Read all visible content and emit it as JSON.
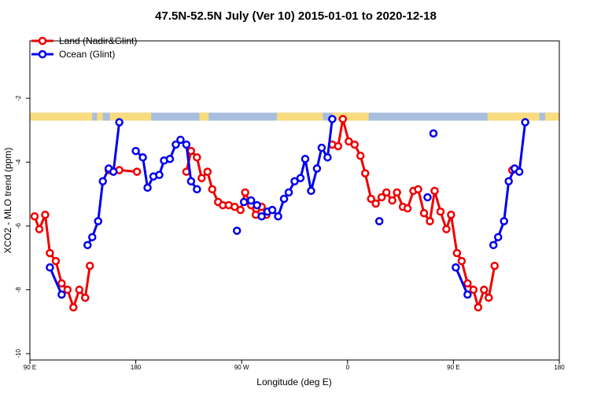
{
  "chart_data": {
    "type": "line",
    "title": "47.5N-52.5N July (Ver 10)   2015-01-01 to 2020-12-18",
    "xlabel": "Longitude (deg E)",
    "ylabel": "XCO2 - MLO trend (ppm)",
    "xlim": [
      90,
      540
    ],
    "ylim": [
      -10.2,
      -0.2
    ],
    "x_tick_values": [
      90,
      180,
      270,
      360,
      450,
      540
    ],
    "x_tick_labels": [
      "90 E",
      "180",
      "90 W",
      "0",
      "90 E",
      "180"
    ],
    "y_tick_values": [
      -10,
      -8,
      -6,
      -4,
      -2
    ],
    "y_tick_labels": [
      "-10",
      "-8",
      "-6",
      "-4",
      "-2"
    ],
    "grid": false,
    "legend_position": "top-left",
    "legend": [
      {
        "label": "Land (Nadir&Glint)",
        "color": "#ee0000"
      },
      {
        "label": "Ocean (Glint)",
        "color": "#0000ee"
      }
    ],
    "land_ocean_strip": {
      "land_color": "#f9dc7e",
      "ocean_color": "#a9bede",
      "y_range": [
        -2.7,
        -2.45
      ],
      "land_ranges": [
        [
          90,
          143
        ],
        [
          147,
          152
        ],
        [
          158,
          193
        ],
        [
          234,
          242
        ],
        [
          300,
          339
        ],
        [
          347,
          378
        ],
        [
          479,
          523
        ],
        [
          528,
          542
        ]
      ]
    },
    "series": [
      {
        "name": "Land (Nadir&Glint)",
        "color": "#ee0000",
        "segments": [
          [
            [
              94,
              -5.7
            ],
            [
              98,
              -6.1
            ],
            [
              103,
              -5.65
            ],
            [
              107,
              -6.85
            ],
            [
              112,
              -7.1
            ],
            [
              117,
              -7.8
            ],
            [
              122,
              -8.0
            ],
            [
              127,
              -8.55
            ],
            [
              132,
              -8.0
            ],
            [
              137,
              -8.25
            ],
            [
              141,
              -7.25
            ]
          ],
          [
            [
              157,
              -4.25
            ],
            [
              166,
              -4.25
            ],
            [
              181,
              -4.3
            ]
          ],
          [
            [
              223,
              -4.3
            ],
            [
              227,
              -3.65
            ],
            [
              232,
              -3.85
            ],
            [
              236,
              -4.5
            ],
            [
              241,
              -4.3
            ],
            [
              245,
              -4.85
            ],
            [
              250,
              -5.25
            ],
            [
              254,
              -5.35
            ],
            [
              259,
              -5.35
            ],
            [
              264,
              -5.4
            ],
            [
              269,
              -5.5
            ],
            [
              273,
              -4.95
            ],
            [
              278,
              -5.35
            ],
            [
              282,
              -5.65
            ],
            [
              287,
              -5.4
            ],
            [
              291,
              -5.65
            ],
            [
              296,
              -5.5
            ]
          ],
          [
            [
              347,
              -3.45
            ],
            [
              352,
              -3.5
            ],
            [
              356,
              -2.65
            ],
            [
              361,
              -3.35
            ],
            [
              366,
              -3.45
            ],
            [
              371,
              -3.8
            ],
            [
              375,
              -4.35
            ],
            [
              380,
              -5.15
            ],
            [
              384,
              -5.3
            ],
            [
              389,
              -5.1
            ],
            [
              393,
              -4.95
            ],
            [
              398,
              -5.2
            ],
            [
              402,
              -4.95
            ],
            [
              407,
              -5.4
            ],
            [
              411,
              -5.45
            ],
            [
              416,
              -4.9
            ],
            [
              420,
              -4.85
            ],
            [
              425,
              -5.6
            ],
            [
              430,
              -5.85
            ],
            [
              434,
              -4.9
            ],
            [
              439,
              -5.55
            ],
            [
              444,
              -6.1
            ],
            [
              448,
              -5.65
            ],
            [
              453,
              -6.85
            ],
            [
              457,
              -7.1
            ],
            [
              462,
              -7.8
            ],
            [
              467,
              -8.0
            ],
            [
              471,
              -8.55
            ],
            [
              476,
              -8.0
            ],
            [
              480,
              -8.25
            ],
            [
              485,
              -7.25
            ]
          ],
          [
            [
              500,
              -4.25
            ]
          ]
        ]
      },
      {
        "name": "Ocean (Glint)",
        "color": "#0000ee",
        "segments": [
          [
            [
              107,
              -7.3
            ],
            [
              117,
              -8.15
            ]
          ],
          [
            [
              139,
              -6.6
            ],
            [
              143,
              -6.35
            ],
            [
              148,
              -5.85
            ],
            [
              152,
              -4.6
            ],
            [
              157,
              -4.2
            ],
            [
              161,
              -4.3
            ],
            [
              166,
              -2.75
            ]
          ],
          [
            [
              180,
              -3.65
            ],
            [
              186,
              -3.85
            ],
            [
              190,
              -4.8
            ],
            [
              195,
              -4.45
            ],
            [
              200,
              -4.4
            ],
            [
              204,
              -3.95
            ],
            [
              209,
              -3.9
            ],
            [
              214,
              -3.45
            ],
            [
              218,
              -3.3
            ],
            [
              223,
              -3.45
            ],
            [
              227,
              -4.6
            ],
            [
              232,
              -4.85
            ]
          ],
          [
            [
              266,
              -6.15
            ]
          ],
          [
            [
              272,
              -5.25
            ],
            [
              278,
              -5.2
            ],
            [
              283,
              -5.35
            ]
          ],
          [
            [
              287,
              -5.7
            ],
            [
              292,
              -5.55
            ],
            [
              296,
              -5.5
            ],
            [
              301,
              -5.7
            ],
            [
              306,
              -5.15
            ],
            [
              310,
              -4.95
            ],
            [
              315,
              -4.6
            ],
            [
              320,
              -4.5
            ],
            [
              324,
              -3.9
            ],
            [
              329,
              -4.9
            ],
            [
              334,
              -4.2
            ],
            [
              338,
              -3.55
            ],
            [
              343,
              -3.85
            ],
            [
              347,
              -2.65
            ]
          ],
          [
            [
              387,
              -5.85
            ]
          ],
          [
            [
              428,
              -5.1
            ]
          ],
          [
            [
              433,
              -3.1
            ]
          ],
          [
            [
              452,
              -7.3
            ],
            [
              462,
              -8.15
            ]
          ],
          [
            [
              484,
              -6.6
            ],
            [
              488,
              -6.35
            ],
            [
              493,
              -5.85
            ],
            [
              497,
              -4.6
            ],
            [
              502,
              -4.2
            ],
            [
              506,
              -4.3
            ],
            [
              511,
              -2.75
            ]
          ]
        ]
      }
    ]
  }
}
